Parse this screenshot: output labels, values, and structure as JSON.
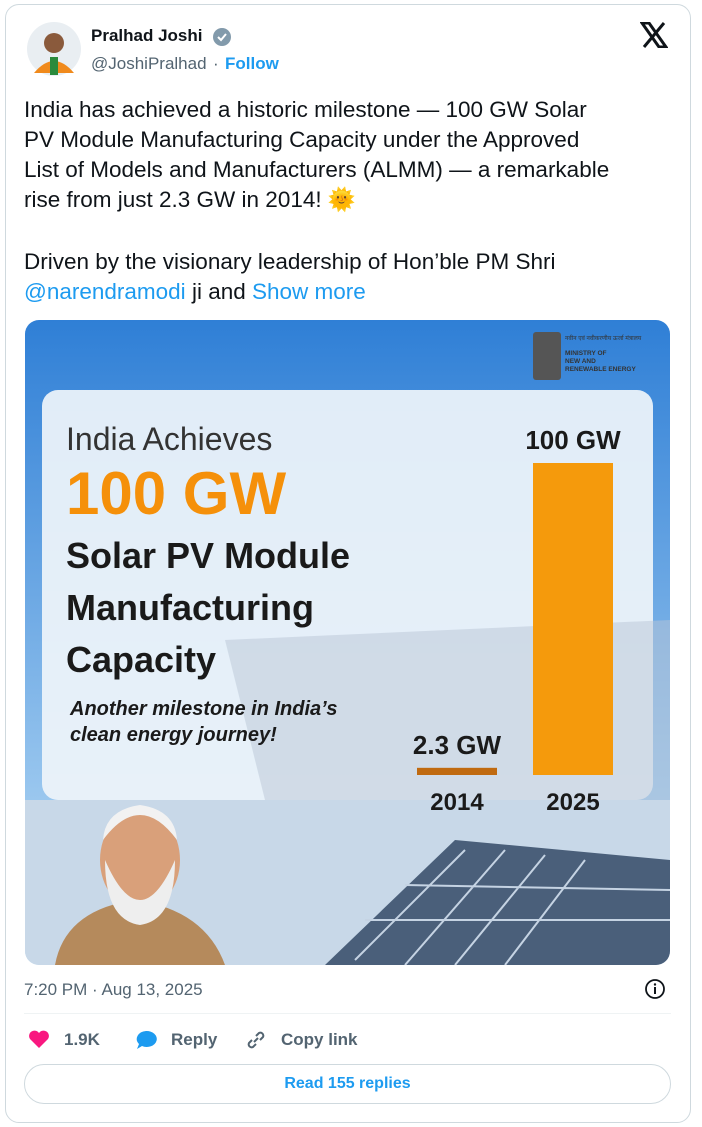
{
  "tweet": {
    "author": {
      "name": "Pralhad Joshi",
      "handle": "@JoshiPralhad",
      "follow": "Follow"
    },
    "text": {
      "paragraph1": [
        "India has achieved a historic milestone — 100 GW Solar",
        "PV Module Manufacturing Capacity under the Approved",
        "List of Models and Manufacturers (ALMM) — a remarkable",
        "rise from just 2.3 GW in 2014! 🌞"
      ],
      "paragraph2": {
        "line1": "Driven by the visionary leadership of Hon’ble PM Shri",
        "mention": "@narendramodi",
        "rest": "ji and",
        "show_more": "Show more"
      }
    },
    "image": {
      "ministry": {
        "hindi": "नवीन एवं नवीकरणीय ऊर्जा मंत्रालय",
        "lines": [
          "MINISTRY OF",
          "NEW AND",
          "RENEWABLE ENERGY"
        ]
      },
      "heading": "India Achieves",
      "highlight": "100 GW",
      "title_lines": [
        "Solar PV Module",
        "Manufacturing",
        "Capacity"
      ],
      "tagline": [
        "Another milestone in India’s",
        "clean energy journey!"
      ],
      "bars": [
        {
          "year": "2014",
          "value": 2.3,
          "value_label": "2.3 GW",
          "color": "#c06a10"
        },
        {
          "year": "2025",
          "value": 100,
          "value_label": "100 GW",
          "color": "#f59a0c"
        }
      ]
    },
    "timestamp": "7:20 PM · Aug 13, 2025",
    "actions": {
      "likes": "1.9K",
      "reply": "Reply",
      "copy": "Copy link"
    },
    "read_replies": "Read 155 replies"
  }
}
